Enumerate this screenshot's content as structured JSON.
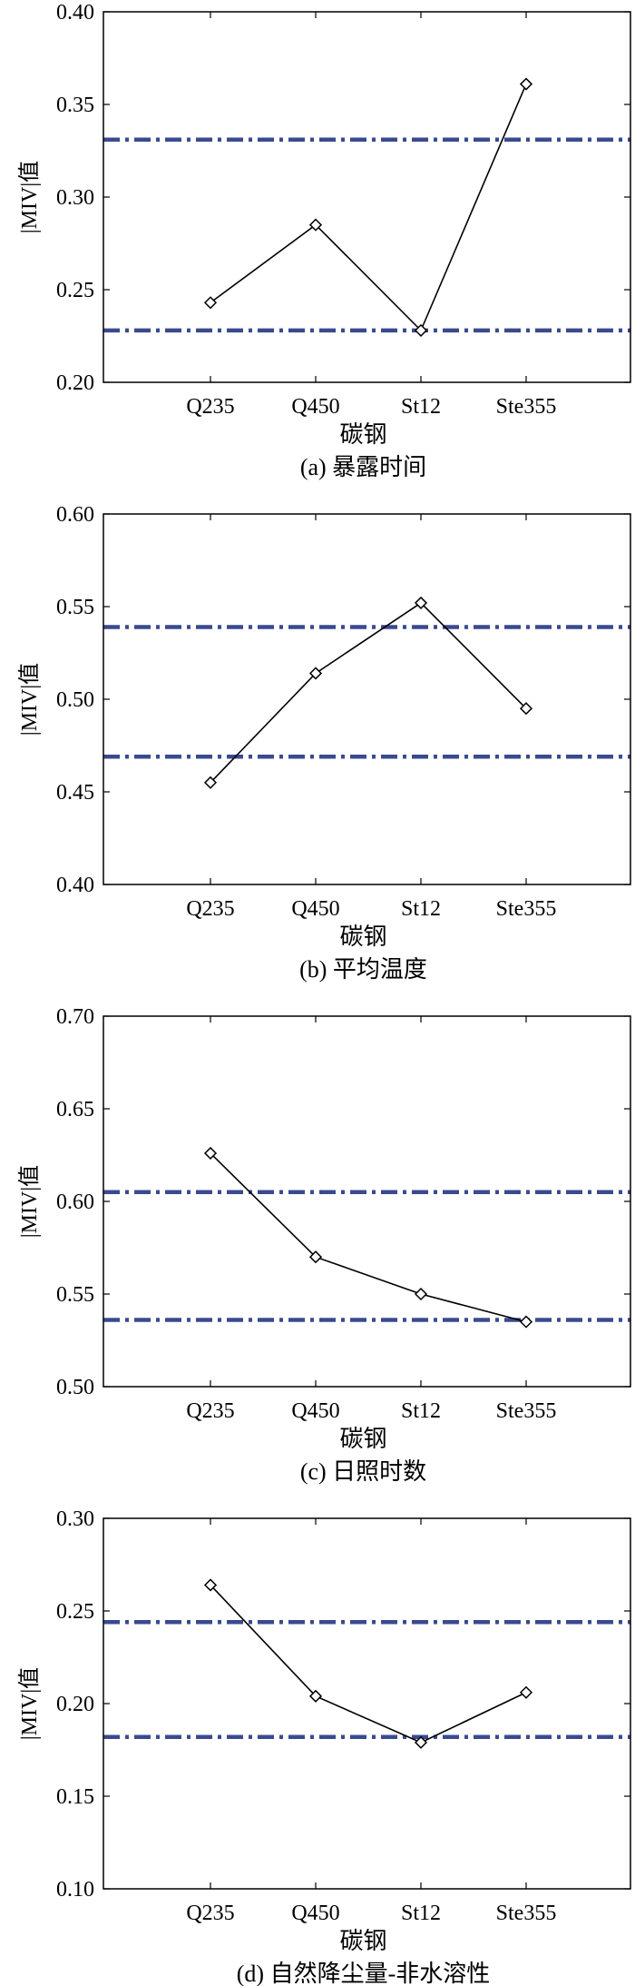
{
  "chart_data": [
    {
      "type": "line",
      "caption": "(a) 暴露时间",
      "xlabel": "碳钢",
      "ylabel": "|MIV|值",
      "categories": [
        "Q235",
        "Q450",
        "St12",
        "Ste355"
      ],
      "values": [
        0.243,
        0.285,
        0.228,
        0.361
      ],
      "ylim": [
        0.2,
        0.4
      ],
      "yticks": [
        "0.20",
        "0.25",
        "0.30",
        "0.35",
        "0.40"
      ],
      "reference_lines": [
        0.331,
        0.228
      ],
      "colors": {
        "line": "#000000",
        "reference": "#3a4a8f"
      },
      "grid": false
    },
    {
      "type": "line",
      "caption": "(b) 平均温度",
      "xlabel": "碳钢",
      "ylabel": "|MIV|值",
      "categories": [
        "Q235",
        "Q450",
        "St12",
        "Ste355"
      ],
      "values": [
        0.455,
        0.514,
        0.552,
        0.495
      ],
      "ylim": [
        0.4,
        0.6
      ],
      "yticks": [
        "0.40",
        "0.45",
        "0.50",
        "0.55",
        "0.60"
      ],
      "reference_lines": [
        0.539,
        0.469
      ],
      "colors": {
        "line": "#000000",
        "reference": "#3a4a8f"
      },
      "grid": false
    },
    {
      "type": "line",
      "caption": "(c) 日照时数",
      "xlabel": "碳钢",
      "ylabel": "|MIV|值",
      "categories": [
        "Q235",
        "Q450",
        "St12",
        "Ste355"
      ],
      "values": [
        0.626,
        0.57,
        0.55,
        0.535
      ],
      "ylim": [
        0.5,
        0.7
      ],
      "yticks": [
        "0.50",
        "0.55",
        "0.60",
        "0.65",
        "0.70"
      ],
      "reference_lines": [
        0.605,
        0.536
      ],
      "colors": {
        "line": "#000000",
        "reference": "#3a4a8f"
      },
      "grid": false
    },
    {
      "type": "line",
      "caption": "(d) 自然降尘量-非水溶性",
      "xlabel": "碳钢",
      "ylabel": "|MIV|值",
      "categories": [
        "Q235",
        "Q450",
        "St12",
        "Ste355"
      ],
      "values": [
        0.264,
        0.204,
        0.179,
        0.206
      ],
      "ylim": [
        0.1,
        0.3
      ],
      "yticks": [
        "0.10",
        "0.15",
        "0.20",
        "0.25",
        "0.30"
      ],
      "reference_lines": [
        0.244,
        0.182
      ],
      "colors": {
        "line": "#000000",
        "reference": "#3a4a8f"
      },
      "grid": false
    }
  ]
}
